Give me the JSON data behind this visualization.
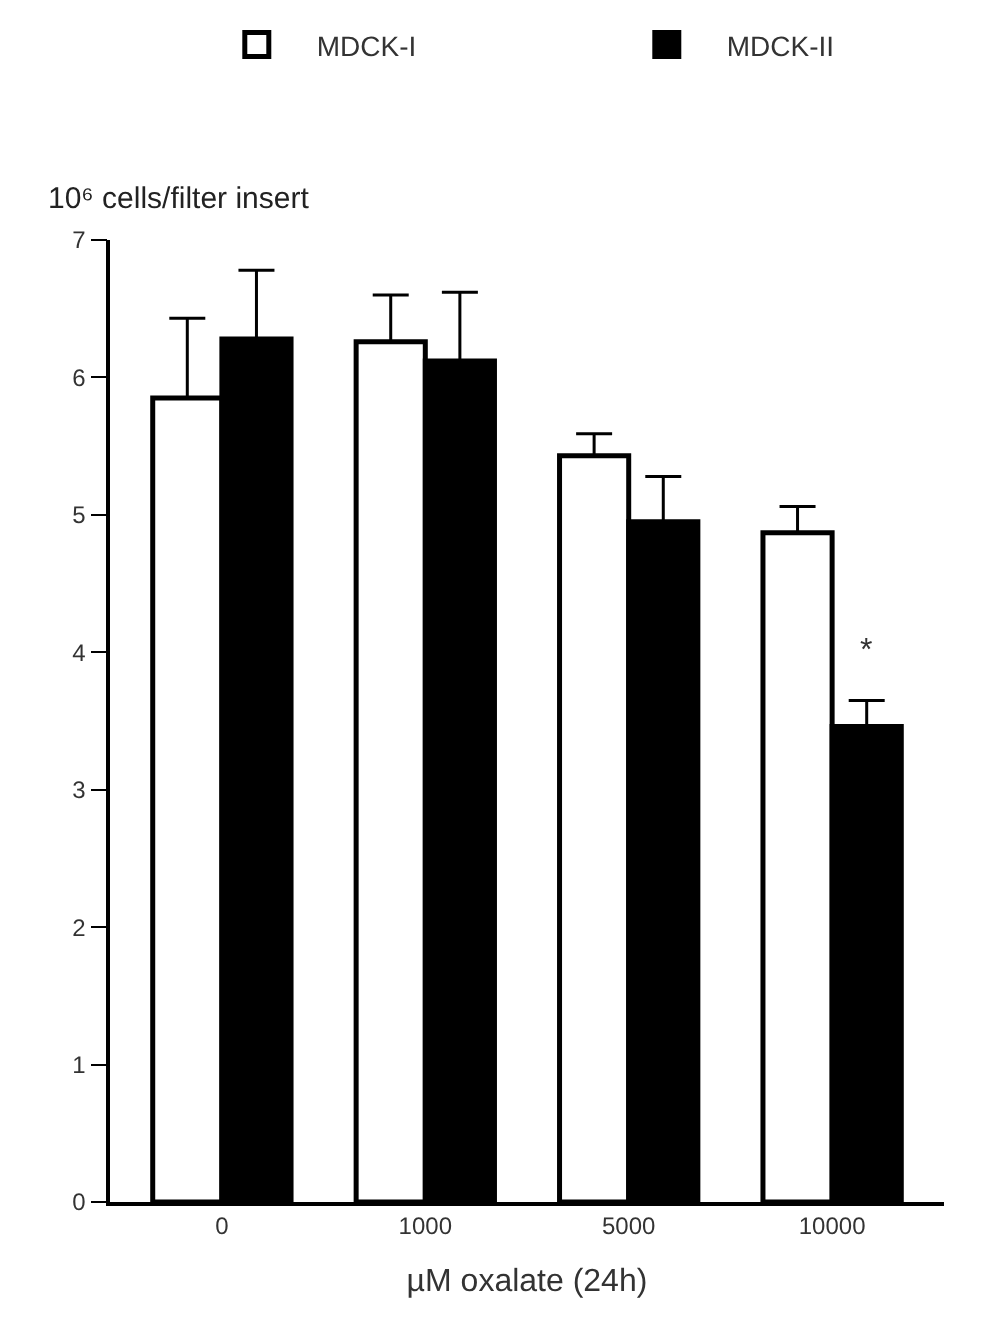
{
  "chart_data": {
    "type": "bar",
    "xlabel": "µM oxalate (24h)",
    "ylabel": "10⁶ cells/filter insert",
    "categories": [
      "0",
      "1000",
      "5000",
      "10000"
    ],
    "series": [
      {
        "name": "MDCK-I",
        "color": "#ffffff",
        "values": [
          5.85,
          6.26,
          5.43,
          4.87
        ],
        "errors": [
          [
            5.85,
            6.43
          ],
          [
            6.26,
            6.6
          ],
          [
            5.43,
            5.59
          ],
          [
            4.87,
            5.06
          ]
        ]
      },
      {
        "name": "MDCK-II",
        "color": "#000000",
        "values": [
          6.28,
          6.12,
          4.95,
          3.46
        ],
        "errors": [
          [
            6.28,
            6.78
          ],
          [
            6.12,
            6.62
          ],
          [
            4.95,
            5.28
          ],
          [
            3.46,
            3.65
          ]
        ]
      }
    ],
    "annotations": [
      {
        "text": "*",
        "x": "10000",
        "y": 3.85
      }
    ],
    "ylim": [
      0,
      7
    ],
    "yticks": [
      0,
      1,
      2,
      3,
      4,
      5,
      6,
      7
    ],
    "legend": "top"
  }
}
